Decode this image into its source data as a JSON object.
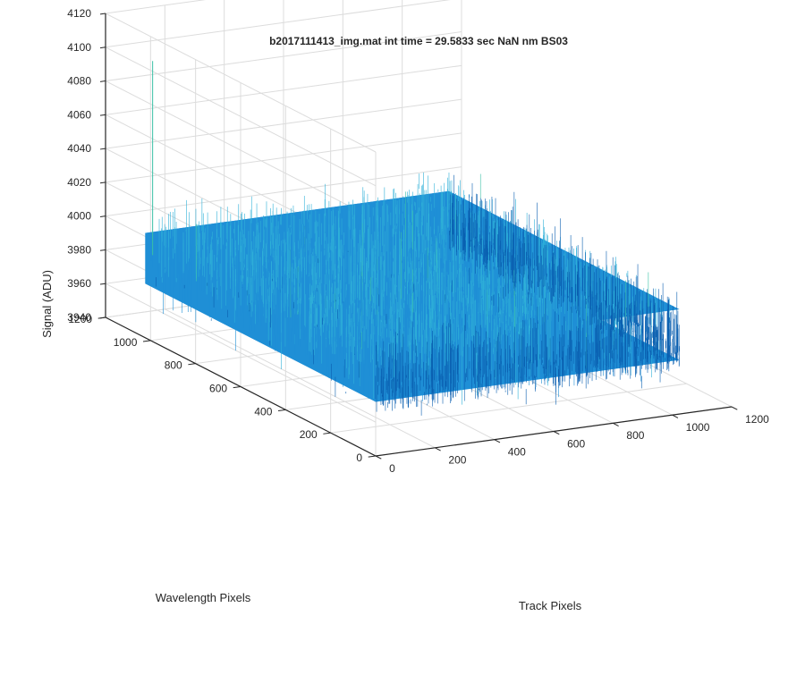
{
  "window": {
    "title": "b2017111413_img.mat int time = 29.5833 sec   NaN nm BS03"
  },
  "chart_data": {
    "type": "surface",
    "title": "b2017111413_img.mat int time = 29.5833 sec   NaN nm BS03",
    "xlabel": "Track Pixels",
    "ylabel": "Wavelength Pixels",
    "zlabel": "Signal (ADU)",
    "xlim": [
      0,
      1200
    ],
    "ylim": [
      0,
      1200
    ],
    "zlim": [
      3940,
      4120
    ],
    "x_ticks": [
      "0",
      "200",
      "400",
      "600",
      "800",
      "1000",
      "1200"
    ],
    "y_ticks": [
      "0",
      "200",
      "400",
      "600",
      "800",
      "1000",
      "1200"
    ],
    "z_ticks": [
      "3940",
      "3960",
      "3980",
      "4000",
      "4020",
      "4040",
      "4060",
      "4080",
      "4100",
      "4120"
    ],
    "grid": true,
    "surface": {
      "x_range": [
        0,
        1024
      ],
      "y_range": [
        0,
        1024
      ],
      "z_mean": 3990,
      "z_noise_range": [
        3955,
        4030
      ],
      "max_spike": 4105,
      "colormap": "parula"
    },
    "colors": {
      "surface_primary": "#1f8fd6",
      "surface_dark": "#0a5fb0",
      "surface_light": "#2fb0d8",
      "surface_high": "#39c0a6",
      "grid": "#dcdcdc",
      "axis": "#262626"
    }
  }
}
